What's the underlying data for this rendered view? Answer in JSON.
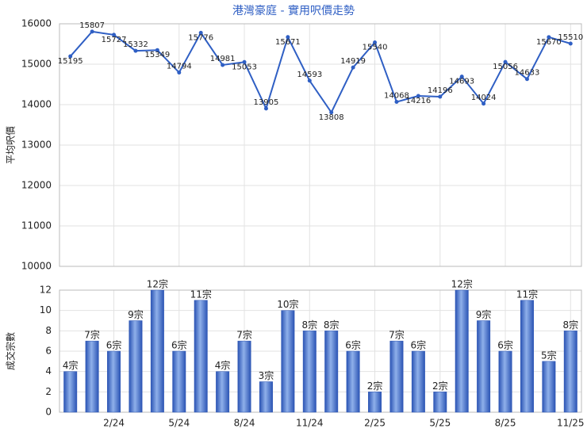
{
  "chart_data": [
    {
      "type": "line",
      "title": "港灣豪庭 - 實用呎價走勢",
      "y_label": "平均呎價",
      "color": "#2f5fc4",
      "values": [
        15195,
        15807,
        15727,
        15332,
        15349,
        14794,
        15776,
        14981,
        15053,
        13905,
        15671,
        14593,
        13808,
        14919,
        15540,
        14068,
        14216,
        14196,
        14693,
        14024,
        15056,
        14633,
        15670,
        15510
      ],
      "ylim": [
        10000,
        16000
      ],
      "yticks": [
        10000,
        11000,
        12000,
        13000,
        14000,
        15000,
        16000
      ],
      "grid": true
    },
    {
      "type": "bar",
      "y_label": "成交宗數",
      "color": "#3a65c4",
      "categories": [
        null,
        null,
        "2/24",
        null,
        null,
        "5/24",
        null,
        null,
        "8/24",
        null,
        null,
        "11/24",
        null,
        null,
        "2/25",
        null,
        null,
        "5/25",
        null,
        null,
        "8/25",
        null,
        null,
        "11/25"
      ],
      "values": [
        4,
        7,
        6,
        9,
        12,
        6,
        11,
        4,
        7,
        3,
        10,
        8,
        8,
        6,
        2,
        7,
        6,
        2,
        12,
        9,
        6,
        11,
        5,
        8
      ],
      "value_labels": [
        "4宗",
        "7宗",
        "6宗",
        "9宗",
        "12宗",
        "6宗",
        "11宗",
        "4宗",
        "7宗",
        "3宗",
        "10宗",
        "8宗",
        "8宗",
        "6宗",
        "2宗",
        "7宗",
        "6宗",
        "2宗",
        "12宗",
        "9宗",
        "6宗",
        "11宗",
        "5宗",
        "8宗"
      ],
      "ylim": [
        0,
        12
      ],
      "yticks": [
        0,
        2,
        4,
        6,
        8,
        10,
        12
      ],
      "grid": true
    }
  ]
}
